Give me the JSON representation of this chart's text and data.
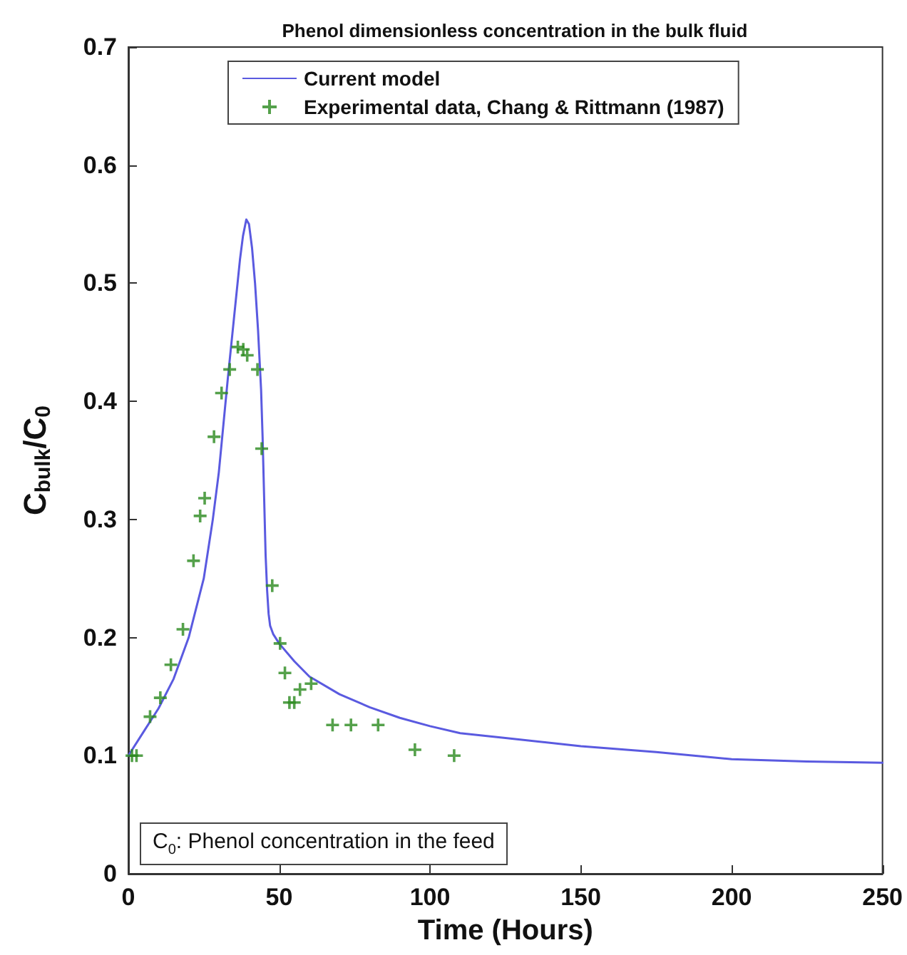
{
  "chart_data": {
    "type": "line",
    "title": "Phenol dimensionless concentration in the bulk fluid",
    "xlabel": "Time (Hours)",
    "ylabel": "C$_{bulk}$/C$_{0}$",
    "annotations": [
      "C$_{0}$: Phenol concentration in the feed"
    ],
    "xlim": [
      0,
      250
    ],
    "xticks": [
      0,
      50,
      100,
      150,
      200,
      250
    ],
    "ylim": [
      0,
      0.7
    ],
    "yticks": [
      0,
      0.1,
      0.2,
      0.3,
      0.4,
      0.5,
      0.6,
      0.7
    ],
    "grid": false,
    "legend": "top",
    "line_style": "solid",
    "series": [
      {
        "name": "Current model",
        "marker": "none",
        "color": "#5a5ae0",
        "x": [
          0,
          5,
          10,
          15,
          20,
          25,
          28,
          30,
          33,
          35,
          37,
          38,
          39.1,
          40,
          41,
          42,
          43,
          44,
          44.5,
          45,
          45.5,
          46,
          46.5,
          47,
          48,
          50,
          55,
          60,
          70,
          80,
          90,
          100,
          110,
          125,
          150,
          175,
          200,
          225,
          250
        ],
        "values": [
          0.1,
          0.12,
          0.14,
          0.165,
          0.2,
          0.25,
          0.3,
          0.34,
          0.42,
          0.47,
          0.52,
          0.54,
          0.554,
          0.55,
          0.53,
          0.5,
          0.46,
          0.41,
          0.37,
          0.32,
          0.27,
          0.24,
          0.22,
          0.21,
          0.203,
          0.195,
          0.18,
          0.167,
          0.152,
          0.141,
          0.132,
          0.125,
          0.119,
          0.115,
          0.108,
          0.103,
          0.097,
          0.095,
          0.094
        ]
      },
      {
        "name": "Experimental data, Chang & Rittmann (1987)",
        "type": "scatter",
        "marker": "cross",
        "color": "#2a8a1e",
        "x": [
          1.2,
          2.7,
          7.2,
          10.6,
          14.1,
          18.1,
          21.6,
          23.8,
          25.3,
          28.4,
          30.9,
          33.6,
          36.3,
          38.1,
          39.4,
          42.8,
          44.2,
          47.7,
          50.3,
          51.9,
          53.4,
          55,
          56.9,
          60.6,
          67.7,
          73.8,
          82.8,
          95,
          108
        ],
        "values": [
          0.1,
          0.1,
          0.133,
          0.149,
          0.177,
          0.207,
          0.265,
          0.303,
          0.318,
          0.37,
          0.407,
          0.427,
          0.446,
          0.444,
          0.439,
          0.427,
          0.36,
          0.244,
          0.195,
          0.17,
          0.145,
          0.145,
          0.156,
          0.161,
          0.126,
          0.126,
          0.126,
          0.105,
          0.1
        ]
      }
    ]
  }
}
